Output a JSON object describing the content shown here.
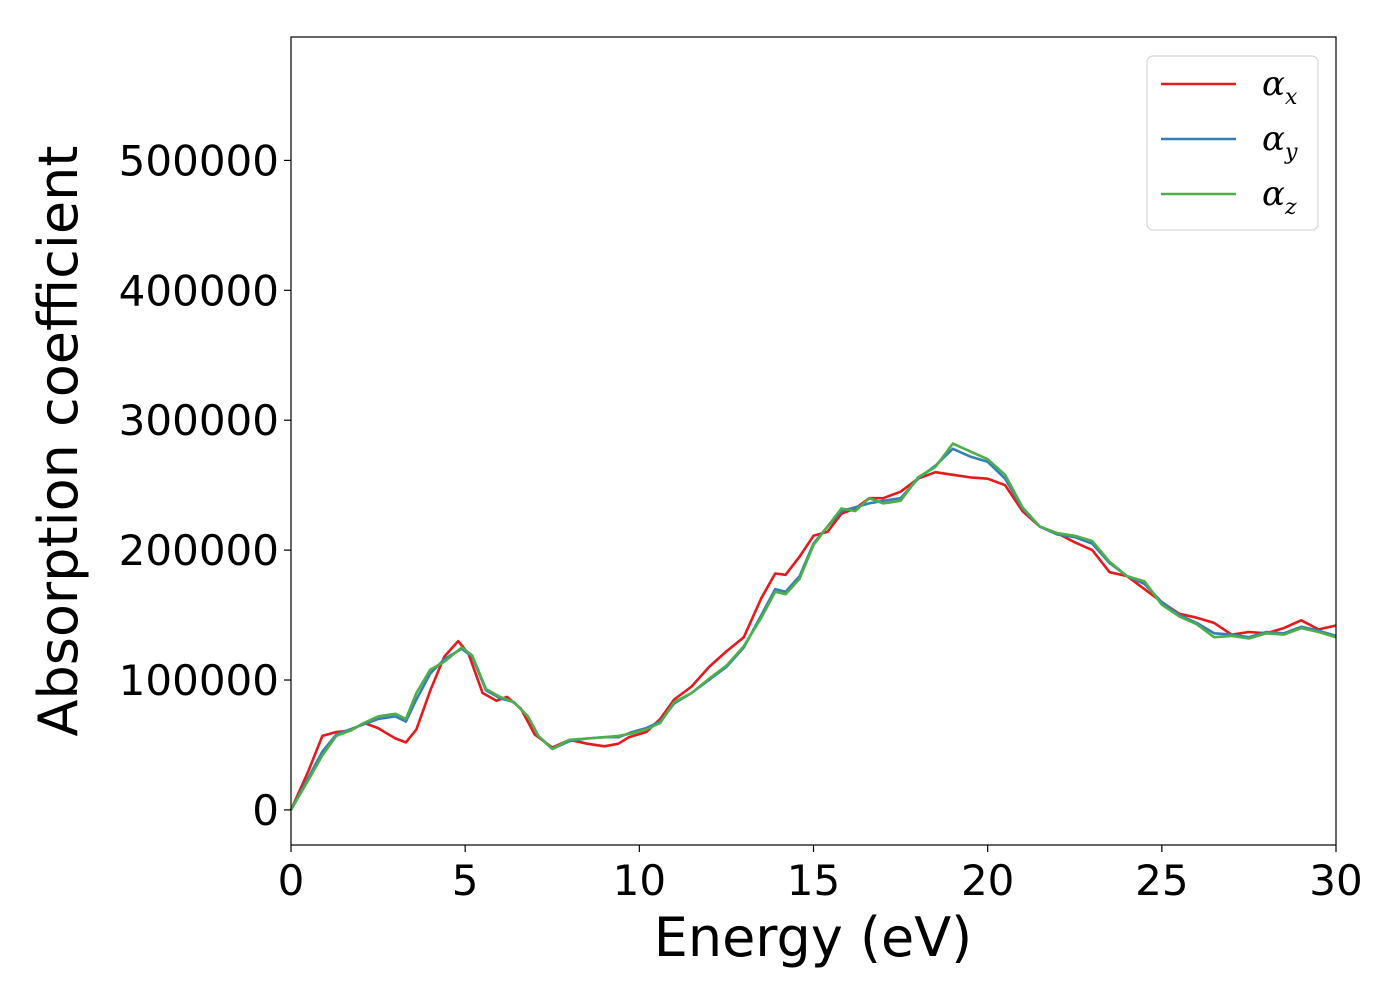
{
  "chart_data": {
    "type": "line",
    "title": "",
    "xlabel": "Energy (eV)",
    "ylabel": "Absorption coefficient",
    "xlim": [
      0,
      30
    ],
    "ylim": [
      -27000,
      595000
    ],
    "xticks": [
      0,
      5,
      10,
      15,
      20,
      25,
      30
    ],
    "yticks": [
      0,
      100000,
      200000,
      300000,
      400000,
      500000
    ],
    "xtick_labels": [
      "0",
      "5",
      "10",
      "15",
      "20",
      "25",
      "30"
    ],
    "ytick_labels": [
      "0",
      "100000",
      "200000",
      "300000",
      "400000",
      "500000"
    ],
    "grid": false,
    "legend_position": "top-right",
    "series": [
      {
        "name": "α_x",
        "base": "α",
        "sub": "x",
        "color": "#e41a1c",
        "x": [
          0,
          0.5,
          0.9,
          1.3,
          1.7,
          2.1,
          2.5,
          3.0,
          3.3,
          3.6,
          4.0,
          4.4,
          4.8,
          5.1,
          5.5,
          5.9,
          6.2,
          6.6,
          7.0,
          7.5,
          8.0,
          8.5,
          9.0,
          9.4,
          9.7,
          10.2,
          10.6,
          11.0,
          11.5,
          12.0,
          12.5,
          13.0,
          13.5,
          13.9,
          14.2,
          14.6,
          15.0,
          15.4,
          15.8,
          16.2,
          16.6,
          17.0,
          17.5,
          18.0,
          18.5,
          19.0,
          19.5,
          20.0,
          20.5,
          21.0,
          21.5,
          22.0,
          22.5,
          23.0,
          23.5,
          24.0,
          24.5,
          25.0,
          25.5,
          26.0,
          26.5,
          27.0,
          27.5,
          28.0,
          28.5,
          29.0,
          29.5,
          30.0
        ],
        "values": [
          0,
          30000,
          57000,
          60000,
          61000,
          67000,
          63000,
          55000,
          52000,
          62000,
          92000,
          118000,
          130000,
          120000,
          90000,
          84000,
          87000,
          78000,
          58000,
          48000,
          54000,
          51000,
          49000,
          51000,
          56000,
          60000,
          70000,
          85000,
          95000,
          110000,
          122000,
          133000,
          163000,
          182000,
          181000,
          195000,
          211000,
          214000,
          228000,
          232000,
          240000,
          240000,
          245000,
          255000,
          260000,
          258000,
          256000,
          255000,
          250000,
          230000,
          218000,
          213000,
          206000,
          200000,
          183000,
          180000,
          170000,
          160000,
          151000,
          148000,
          144000,
          135000,
          137000,
          136000,
          140000,
          146000,
          139000,
          142000
        ]
      },
      {
        "name": "α_y",
        "base": "α",
        "sub": "y",
        "color": "#377eb8",
        "x": [
          0,
          0.5,
          0.9,
          1.3,
          1.7,
          2.1,
          2.5,
          3.0,
          3.3,
          3.6,
          4.0,
          4.4,
          4.9,
          5.2,
          5.6,
          6.0,
          6.4,
          6.8,
          7.1,
          7.5,
          8.0,
          8.5,
          9.0,
          9.4,
          9.8,
          10.2,
          10.6,
          11.0,
          11.5,
          12.0,
          12.5,
          13.0,
          13.5,
          13.9,
          14.2,
          14.6,
          15.0,
          15.4,
          15.8,
          16.2,
          16.6,
          17.0,
          17.5,
          18.0,
          18.5,
          19.0,
          19.5,
          20.0,
          20.5,
          21.0,
          21.5,
          22.0,
          22.5,
          23.0,
          23.5,
          24.0,
          24.5,
          25.0,
          25.5,
          26.0,
          26.5,
          27.0,
          27.5,
          28.0,
          28.5,
          29.0,
          29.5,
          30.0
        ],
        "values": [
          0,
          25000,
          45000,
          58000,
          62000,
          66000,
          70000,
          72000,
          68000,
          85000,
          105000,
          116000,
          124000,
          118000,
          92000,
          86000,
          83000,
          72000,
          57000,
          47000,
          53000,
          55000,
          56000,
          56000,
          60000,
          63000,
          68000,
          82000,
          90000,
          100000,
          110000,
          125000,
          150000,
          170000,
          168000,
          180000,
          205000,
          218000,
          230000,
          233000,
          236000,
          238000,
          240000,
          255000,
          265000,
          278000,
          272000,
          268000,
          255000,
          232000,
          218000,
          212000,
          210000,
          205000,
          190000,
          180000,
          174000,
          160000,
          150000,
          144000,
          136000,
          135000,
          133000,
          137000,
          136000,
          141000,
          138000,
          134000
        ]
      },
      {
        "name": "α_z",
        "base": "α",
        "sub": "z",
        "color": "#4daf4a",
        "x": [
          0,
          0.5,
          0.9,
          1.3,
          1.7,
          2.1,
          2.5,
          3.0,
          3.3,
          3.6,
          4.0,
          4.4,
          4.9,
          5.2,
          5.6,
          6.0,
          6.4,
          6.8,
          7.1,
          7.5,
          8.0,
          8.5,
          9.0,
          9.4,
          9.8,
          10.2,
          10.6,
          11.0,
          11.5,
          12.0,
          12.5,
          13.0,
          13.5,
          13.9,
          14.2,
          14.6,
          15.0,
          15.4,
          15.8,
          16.2,
          16.6,
          17.0,
          17.5,
          18.0,
          18.5,
          19.0,
          19.5,
          20.0,
          20.5,
          21.0,
          21.5,
          22.0,
          22.5,
          23.0,
          23.5,
          24.0,
          24.5,
          25.0,
          25.5,
          26.0,
          26.5,
          27.0,
          27.5,
          28.0,
          28.5,
          29.0,
          29.5,
          30.0
        ],
        "values": [
          0,
          23000,
          42000,
          57000,
          61000,
          67000,
          72000,
          74000,
          70000,
          90000,
          108000,
          114000,
          125000,
          119000,
          93000,
          87000,
          83000,
          72000,
          57000,
          47000,
          54000,
          55000,
          56000,
          57000,
          59000,
          62000,
          67000,
          83000,
          90000,
          101000,
          111000,
          126000,
          148000,
          168000,
          166000,
          178000,
          204000,
          218000,
          232000,
          230000,
          240000,
          236000,
          238000,
          256000,
          264000,
          282000,
          276000,
          270000,
          258000,
          233000,
          218000,
          213000,
          211000,
          207000,
          191000,
          180000,
          176000,
          158000,
          149000,
          143000,
          133000,
          134000,
          132000,
          136000,
          135000,
          140000,
          137000,
          133000
        ]
      }
    ]
  }
}
